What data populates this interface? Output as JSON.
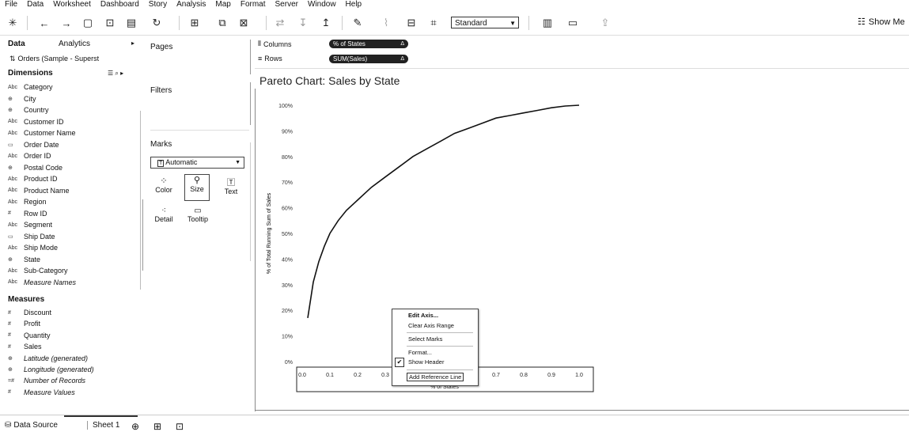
{
  "menu": [
    "File",
    "Data",
    "Worksheet",
    "Dashboard",
    "Story",
    "Analysis",
    "Map",
    "Format",
    "Server",
    "Window",
    "Help"
  ],
  "toolbar": {
    "fit_value": "Standard",
    "show_me_label": "Show Me",
    "icons": [
      "tableau-logo-icon",
      "undo-icon",
      "redo-icon",
      "save-icon",
      "new-datasource-icon",
      "paste-icon",
      "refresh-icon",
      "new-worksheet-icon",
      "duplicate-icon",
      "clear-sheet-icon",
      "swap-icon",
      "sort-asc-icon",
      "sort-desc-icon",
      "highlight-icon",
      "group-icon",
      "label-icon",
      "fix-axes-icon",
      "presentation-icon",
      "share-icon"
    ]
  },
  "data_pane": {
    "tab_data": "Data",
    "tab_analytics": "Analytics",
    "datasource": "Orders (Sample - Superst",
    "dimensions_header": "Dimensions",
    "measures_header": "Measures",
    "dimensions": [
      {
        "type": "Abc",
        "name": "Category"
      },
      {
        "type": "⊕",
        "name": "City"
      },
      {
        "type": "⊕",
        "name": "Country"
      },
      {
        "type": "Abc",
        "name": "Customer ID"
      },
      {
        "type": "Abc",
        "name": "Customer Name"
      },
      {
        "type": "▭",
        "name": "Order Date"
      },
      {
        "type": "Abc",
        "name": "Order ID"
      },
      {
        "type": "⊕",
        "name": "Postal Code"
      },
      {
        "type": "Abc",
        "name": "Product ID"
      },
      {
        "type": "Abc",
        "name": "Product Name"
      },
      {
        "type": "Abc",
        "name": "Region"
      },
      {
        "type": "#",
        "name": "Row ID"
      },
      {
        "type": "Abc",
        "name": "Segment"
      },
      {
        "type": "▭",
        "name": "Ship Date"
      },
      {
        "type": "Abc",
        "name": "Ship Mode"
      },
      {
        "type": "⊕",
        "name": "State"
      },
      {
        "type": "Abc",
        "name": "Sub-Category"
      },
      {
        "type": "Abc",
        "name": "Measure Names"
      }
    ],
    "measures": [
      {
        "type": "#",
        "name": "Discount"
      },
      {
        "type": "#",
        "name": "Profit"
      },
      {
        "type": "#",
        "name": "Quantity"
      },
      {
        "type": "#",
        "name": "Sales"
      },
      {
        "type": "⊕",
        "name": "Latitude (generated)"
      },
      {
        "type": "⊕",
        "name": "Longitude (generated)"
      },
      {
        "type": "=#",
        "name": "Number of Records"
      },
      {
        "type": "#",
        "name": "Measure Values"
      }
    ]
  },
  "cards": {
    "pages": "Pages",
    "filters": "Filters",
    "marks": "Marks",
    "mark_type": "Automatic",
    "mark_buttons": [
      "Color",
      "Size",
      "Text",
      "Detail",
      "Tooltip"
    ]
  },
  "shelves": {
    "columns_label": "Columns",
    "rows_label": "Rows",
    "columns_pill": "% of States",
    "rows_pill": "SUM(Sales)",
    "pill_delta": "Δ"
  },
  "view": {
    "title": "Pareto Chart: Sales by State"
  },
  "chart_data": {
    "type": "line",
    "title": "Pareto Chart: Sales by State",
    "ylabel": "% of Total Running Sum of Sales",
    "xlabel": "% of States",
    "xlim": [
      0,
      1
    ],
    "ylim": [
      0,
      1
    ],
    "y_ticks": [
      "0%",
      "10%",
      "20%",
      "30%",
      "40%",
      "50%",
      "60%",
      "70%",
      "80%",
      "90%",
      "100%"
    ],
    "x_ticks": [
      "0.0",
      "0.1",
      "0.2",
      "0.3",
      "0.7",
      "0.8",
      "0.9",
      "1.0"
    ],
    "series": [
      {
        "x": [
          0.02,
          0.04,
          0.06,
          0.08,
          0.1,
          0.13,
          0.16,
          0.2,
          0.25,
          0.3,
          0.35,
          0.4,
          0.45,
          0.5,
          0.55,
          0.6,
          0.65,
          0.7,
          0.75,
          0.8,
          0.85,
          0.9,
          0.95,
          1.0
        ],
        "y": [
          0.17,
          0.31,
          0.39,
          0.45,
          0.5,
          0.55,
          0.59,
          0.63,
          0.68,
          0.72,
          0.76,
          0.8,
          0.83,
          0.86,
          0.89,
          0.91,
          0.93,
          0.95,
          0.96,
          0.97,
          0.98,
          0.99,
          0.997,
          1.0
        ]
      }
    ],
    "grid": false
  },
  "context_menu": {
    "items": [
      "Edit Axis...",
      "Clear Axis Range",
      "Select Marks",
      "Format...",
      "Show Header",
      "Add Reference Line"
    ],
    "checked": "Show Header"
  },
  "bottom": {
    "data_source": "Data Source",
    "sheet": "Sheet 1"
  }
}
